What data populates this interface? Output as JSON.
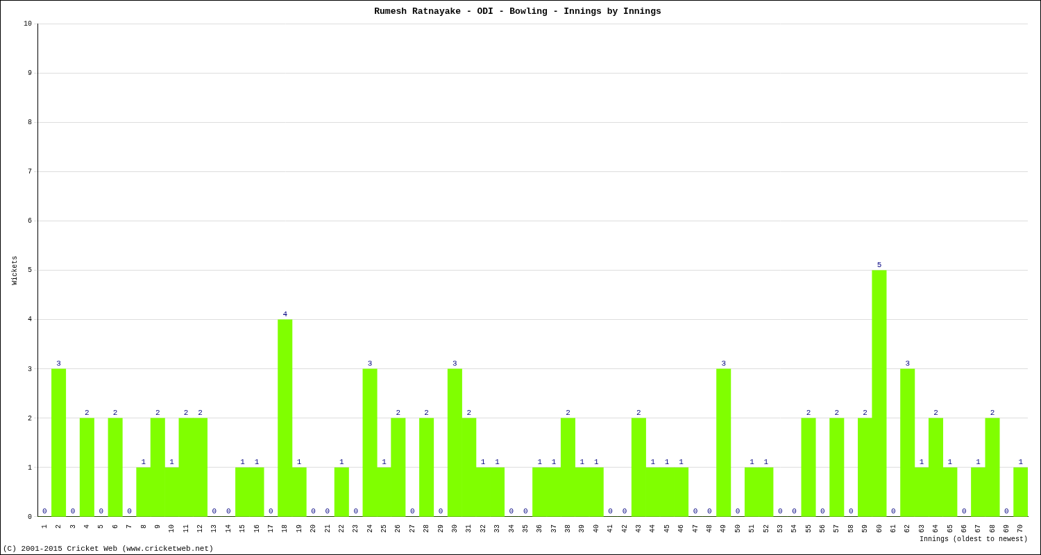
{
  "chart_data": {
    "type": "bar",
    "title": "Rumesh Ratnayake - ODI - Bowling - Innings by Innings",
    "x_label": "Innings (oldest to newest)",
    "y_label": "Wickets",
    "footer": "(C) 2001-2015 Cricket Web (www.cricketweb.net)",
    "categories": [
      "1",
      "2",
      "3",
      "4",
      "5",
      "6",
      "7",
      "8",
      "9",
      "10",
      "11",
      "12",
      "13",
      "14",
      "15",
      "16",
      "17",
      "18",
      "19",
      "20",
      "21",
      "22",
      "23",
      "24",
      "25",
      "26",
      "27",
      "28",
      "29",
      "30",
      "31",
      "32",
      "33",
      "34",
      "35",
      "36",
      "37",
      "38",
      "39",
      "40",
      "41",
      "42",
      "43",
      "44",
      "45",
      "46",
      "47",
      "48",
      "49",
      "50",
      "51",
      "52",
      "53",
      "54",
      "55",
      "56",
      "57",
      "58",
      "59",
      "60",
      "61",
      "62",
      "63",
      "64",
      "65",
      "66",
      "67",
      "68",
      "69",
      "70"
    ],
    "values": [
      0,
      3,
      0,
      2,
      0,
      2,
      0,
      1,
      2,
      1,
      2,
      2,
      0,
      0,
      1,
      1,
      0,
      4,
      1,
      0,
      0,
      1,
      0,
      3,
      1,
      2,
      0,
      2,
      0,
      3,
      2,
      1,
      1,
      0,
      0,
      1,
      1,
      2,
      1,
      1,
      0,
      0,
      2,
      1,
      1,
      1,
      0,
      0,
      3,
      0,
      1,
      1,
      0,
      0,
      2,
      0,
      2,
      0,
      2,
      5,
      0,
      3,
      1,
      2,
      1,
      0,
      1,
      2,
      0,
      1
    ],
    "color": "#80ff00",
    "ylim": [
      0,
      10
    ],
    "yticks": [
      0,
      1,
      2,
      3,
      4,
      5,
      6,
      7,
      8,
      9,
      10
    ],
    "grid": true,
    "data_labels": true
  }
}
